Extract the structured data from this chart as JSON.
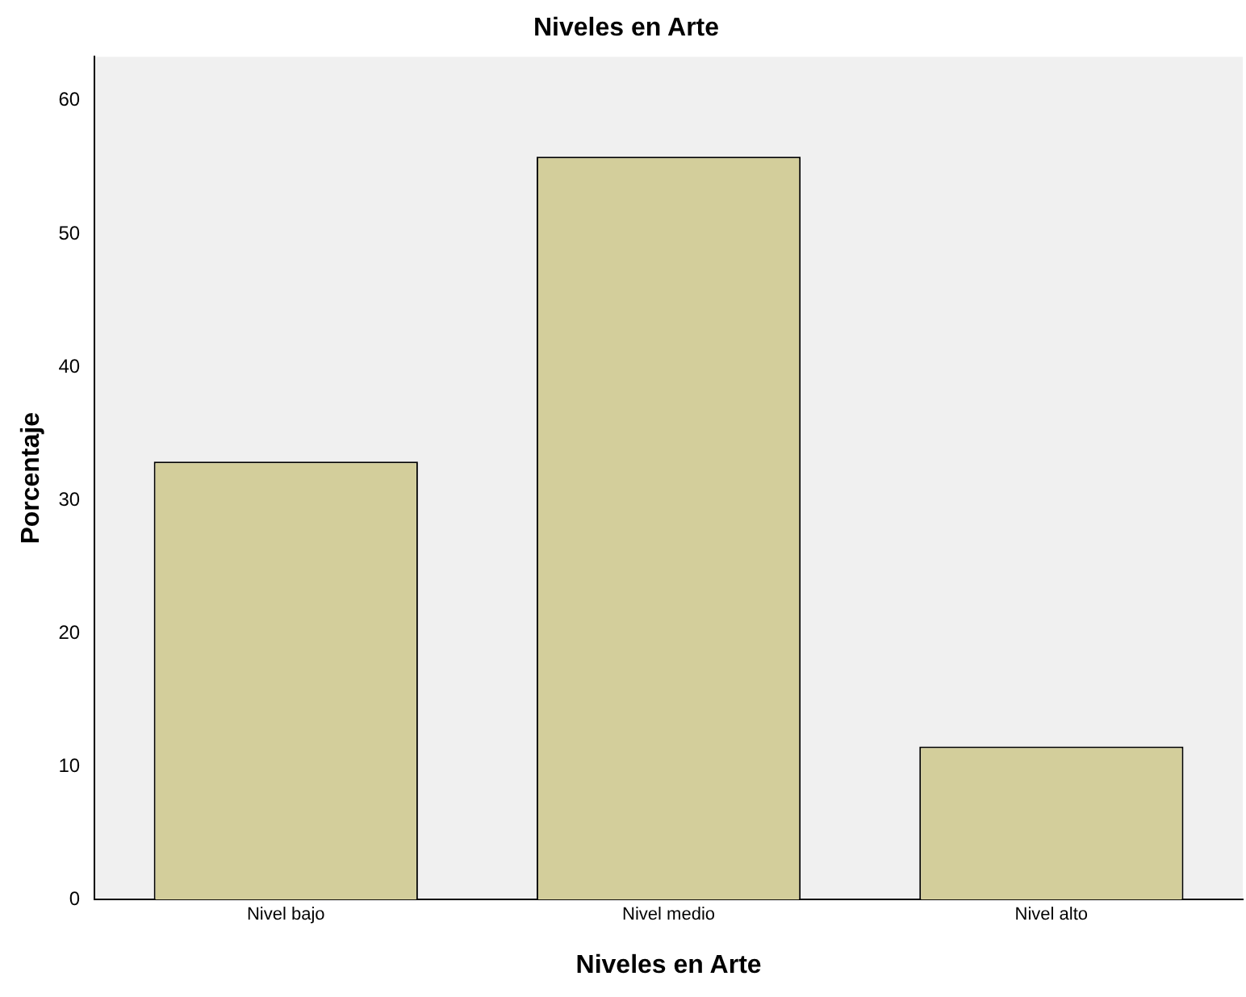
{
  "chart_data": {
    "type": "bar",
    "title": "Niveles en Arte",
    "xlabel": "Niveles en Arte",
    "ylabel": "Porcentaje",
    "categories": [
      "Nivel bajo",
      "Nivel medio",
      "Nivel alto"
    ],
    "values": [
      32.9,
      55.8,
      11.5
    ],
    "color": "#d3ce9b",
    "ylim": [
      0,
      63.3
    ],
    "yticks": [
      0,
      10,
      20,
      30,
      40,
      50,
      60
    ],
    "grid": false,
    "legend": false
  }
}
